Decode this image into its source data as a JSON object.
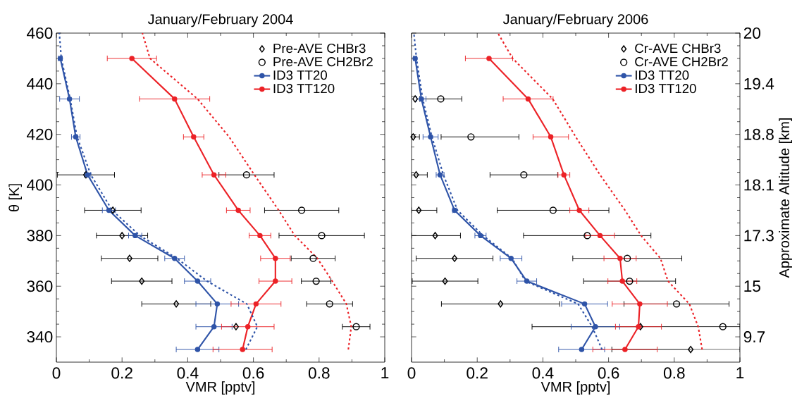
{
  "chart_data": [
    {
      "type": "line",
      "title": "January/February 2004",
      "xlabel": "VMR [pptv]",
      "ylabel": "θ [K]",
      "xlim": [
        0,
        1
      ],
      "xticks": [
        0,
        0.2,
        0.4,
        0.6,
        0.8,
        1
      ],
      "ylim": [
        330,
        460
      ],
      "yticks": [
        340,
        360,
        380,
        400,
        420,
        440,
        460
      ],
      "legend": "top right",
      "series": [
        {
          "name": "Pre-AVE CHBr3",
          "type": "scatter",
          "marker": "diamond",
          "color": "#000000",
          "x": [
            0.547,
            0.365,
            0.26,
            0.223,
            0.2,
            0.172,
            0.09
          ],
          "values": [
            344,
            353,
            362,
            371,
            380,
            390,
            404
          ],
          "xerrors": [
            null,
            0.105,
            0.092,
            0.086,
            0.078,
            0.086,
            0.087
          ]
        },
        {
          "name": "Pre-AVE CH2Br2",
          "type": "scatter",
          "marker": "circle",
          "color": "#000000",
          "x": [
            0.913,
            0.832,
            0.791,
            0.782,
            0.808,
            0.747,
            0.579
          ],
          "values": [
            344,
            353,
            362,
            371,
            380,
            390,
            404
          ],
          "xerrors": [
            0.042,
            0.07,
            0.045,
            0.067,
            0.13,
            0.113,
            0.084
          ]
        },
        {
          "name": "ID3 TT20",
          "marker": "circle",
          "line_style": "solid",
          "color": "#2f54a8",
          "x": [
            0.43,
            0.48,
            0.49,
            0.43,
            0.36,
            0.24,
            0.16,
            0.095,
            0.059,
            0.04,
            0.012
          ],
          "values": [
            335,
            344,
            353,
            362,
            371,
            380,
            390,
            404,
            419,
            434,
            450
          ],
          "xerrors": [
            0.065,
            0.055,
            0.065,
            0.04,
            0.03,
            0.02,
            0.02,
            0.01,
            0.013,
            0.03,
            0.006
          ]
        },
        {
          "name": "ID3 TT120",
          "marker": "circle",
          "line_style": "solid",
          "color": "#ec2227",
          "x": [
            0.567,
            0.583,
            0.608,
            0.667,
            0.667,
            0.62,
            0.554,
            0.48,
            0.418,
            0.36,
            0.23
          ],
          "values": [
            335,
            344,
            353,
            362,
            371,
            380,
            390,
            404,
            419,
            434,
            450
          ],
          "xerrors": [
            0.09,
            0.08,
            0.076,
            0.05,
            0.045,
            0.033,
            0.036,
            0.036,
            0.031,
            0.107,
            0.075
          ]
        },
        {
          "marker": "none",
          "line_style": "dotted",
          "color": "#2f54a8",
          "x": [
            0.577,
            0.612,
            0.58,
            0.459,
            0.367,
            0.254,
            0.17,
            0.105,
            0.063,
            0.042,
            0.015,
            0.009
          ],
          "values": [
            335,
            344,
            353,
            362,
            371,
            380,
            390,
            404,
            419,
            434,
            450,
            460
          ]
        },
        {
          "marker": "none",
          "line_style": "dotted",
          "color": "#ec2227",
          "x": [
            0.889,
            0.898,
            0.883,
            0.84,
            0.795,
            0.726,
            0.677,
            0.603,
            0.526,
            0.43,
            0.285,
            0.262
          ],
          "values": [
            335,
            344,
            353,
            362,
            371,
            380,
            390,
            404,
            419,
            434,
            450,
            460
          ]
        }
      ]
    },
    {
      "type": "line",
      "title": "January/February 2006",
      "xlabel": "VMR [pptv]",
      "y2label": "Approximate Altitude [km]",
      "xlim": [
        0,
        1
      ],
      "xticks": [
        0,
        0.2,
        0.4,
        0.6,
        0.8,
        1
      ],
      "ylim": [
        330,
        460
      ],
      "yticks": [
        340,
        360,
        380,
        400,
        420,
        440,
        460
      ],
      "tick_labels": "x",
      "annotations": [
        "9.7",
        "15",
        "17.3",
        "18.1",
        "18.8",
        "19.4",
        "20"
      ],
      "legend": "top right",
      "series": [
        {
          "name": "Cr-AVE CHBr3",
          "type": "scatter",
          "marker": "diamond",
          "color": "#000000",
          "x": [
            0.85,
            0.697,
            0.271,
            0.102,
            0.131,
            0.072,
            0.022,
            0.014,
            0.005,
            0.011
          ],
          "values": [
            335,
            344,
            353,
            362,
            371,
            380,
            390,
            404,
            419,
            434
          ],
          "xerrors": [
            [
              0.61,
              1.0
            ],
            [
              0.367,
              1.0
            ],
            0.18,
            0.1,
            0.117,
            [
              0,
              0.149
            ],
            [
              0,
              0.077
            ],
            [
              0,
              0.048
            ],
            [
              0,
              0.024
            ],
            null
          ]
        },
        {
          "name": "Cr-AVE CH2Br2",
          "type": "scatter",
          "marker": "circle",
          "color": "#000000",
          "x": [
            0.948,
            0.807,
            0.664,
            0.657,
            0.535,
            0.431,
            0.342,
            0.181,
            0.089
          ],
          "values": [
            344,
            353,
            362,
            371,
            380,
            390,
            404,
            419,
            434
          ],
          "xerrors": [
            null,
            0.16,
            0.14,
            0.166,
            0.194,
            0.17,
            0.103,
            [
              0.09,
              0.327
            ],
            0.064
          ]
        },
        {
          "name": "ID3 TT20",
          "marker": "circle",
          "line_style": "solid",
          "color": "#2f54a8",
          "x": [
            0.518,
            0.56,
            0.527,
            0.351,
            0.303,
            0.21,
            0.131,
            0.087,
            0.058,
            0.03,
            0.011
          ],
          "values": [
            335,
            344,
            353,
            362,
            371,
            380,
            390,
            404,
            419,
            434,
            450
          ],
          "xerrors": [
            0.07,
            0.074,
            0.07,
            0.03,
            0.033,
            0.017,
            0.006,
            0.012,
            0.023,
            0.014,
            0.005
          ]
        },
        {
          "name": "ID3 TT120",
          "marker": "circle",
          "line_style": "solid",
          "color": "#ec2227",
          "x": [
            0.65,
            0.691,
            0.695,
            0.642,
            0.635,
            0.574,
            0.511,
            0.464,
            0.424,
            0.355,
            0.236
          ],
          "values": [
            335,
            344,
            353,
            362,
            371,
            380,
            390,
            404,
            419,
            434,
            450
          ],
          "xerrors": [
            0.098,
            0.07,
            0.084,
            0.044,
            0.049,
            0.044,
            0.029,
            0.018,
            0.054,
            0.076,
            0.072
          ]
        },
        {
          "marker": "none",
          "line_style": "dotted",
          "color": "#2f54a8",
          "x": [
            0.58,
            0.55,
            0.507,
            0.347,
            0.306,
            0.218,
            0.14,
            0.097,
            0.062,
            0.034,
            0.015,
            0.007
          ],
          "values": [
            335,
            344,
            353,
            362,
            371,
            380,
            390,
            404,
            419,
            434,
            450,
            460
          ]
        },
        {
          "marker": "none",
          "line_style": "dotted",
          "color": "#ec2227",
          "x": [
            0.885,
            0.873,
            0.846,
            0.781,
            0.758,
            0.699,
            0.65,
            0.574,
            0.5,
            0.43,
            0.308,
            0.263
          ],
          "values": [
            335,
            344,
            353,
            362,
            371,
            380,
            390,
            404,
            419,
            434,
            450,
            460
          ]
        }
      ]
    }
  ]
}
